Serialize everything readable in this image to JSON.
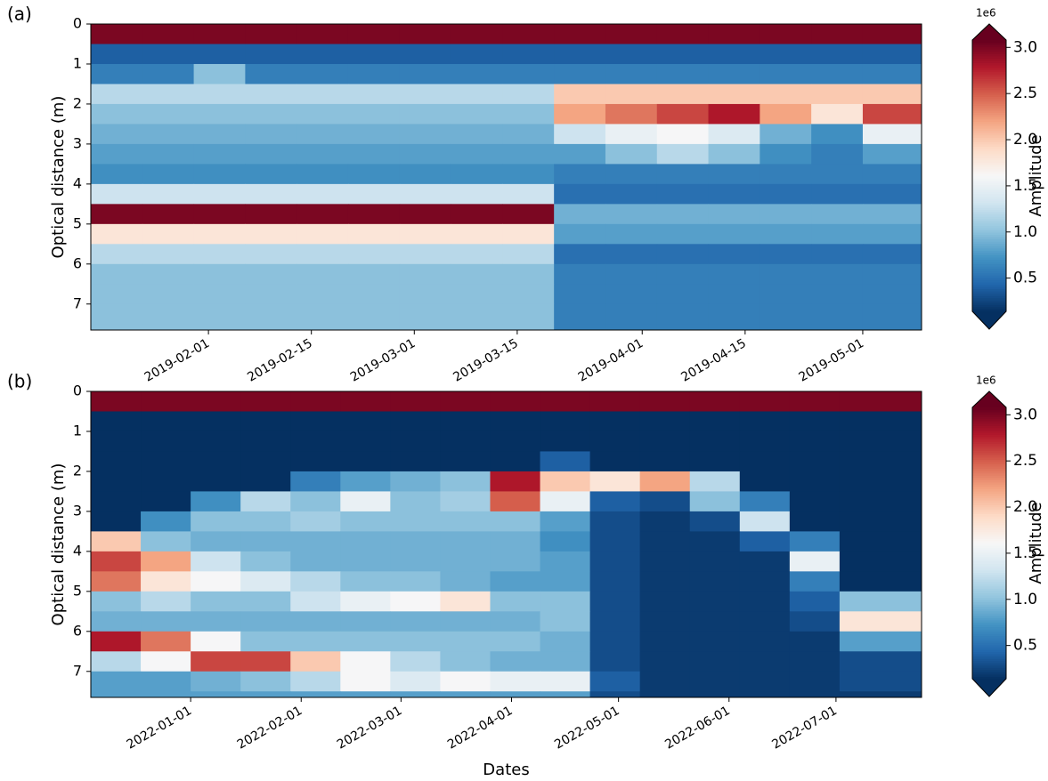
{
  "chart_data": [
    {
      "type": "heatmap",
      "panel_label": "(a)",
      "ylabel": "Optical distance  (m)",
      "colorbar_label": "Amplitude",
      "colorbar_offset": "1e6",
      "colormap": "RdBu_r",
      "xlim": [
        "2019-01-16",
        "2019-05-09"
      ],
      "xticks": [
        "2019-02-01",
        "2019-02-15",
        "2019-03-01",
        "2019-03-15",
        "2019-04-01",
        "2019-04-15",
        "2019-05-01"
      ],
      "ylim": [
        7.65,
        0
      ],
      "yticks": [
        0,
        1,
        2,
        3,
        4,
        5,
        6,
        7
      ],
      "clim": [
        0.14,
        3.08
      ],
      "cticks": [
        0.5,
        {
          "value": 1,
          "label": "1.0"
        },
        1.5,
        {
          "value": 2,
          "label": "2.0"
        },
        2.5,
        {
          "value": 3,
          "label": "3.0"
        }
      ],
      "x": [
        "2019-01-16",
        "2019-01-23",
        "2019-01-30",
        "2019-02-06",
        "2019-02-13",
        "2019-02-20",
        "2019-02-27",
        "2019-03-06",
        "2019-03-13",
        "2019-03-20",
        "2019-03-27",
        "2019-04-03",
        "2019-04-10",
        "2019-04-17",
        "2019-04-24",
        "2019-05-01"
      ],
      "y": [
        0,
        0.5,
        1,
        1.5,
        2,
        2.5,
        3,
        3.5,
        4,
        4.5,
        5,
        5.5,
        6,
        6.5,
        7,
        7.5
      ],
      "z": [
        [
          3.0,
          3.0,
          3.0,
          3.0,
          3.0,
          3.0,
          3.0,
          3.0,
          3.0,
          3.0,
          3.0,
          3.0,
          3.0,
          3.0,
          3.0,
          3.0
        ],
        [
          0.4,
          0.4,
          0.4,
          0.4,
          0.4,
          0.4,
          0.4,
          0.4,
          0.4,
          0.4,
          0.4,
          0.4,
          0.4,
          0.4,
          0.4,
          0.4
        ],
        [
          0.6,
          0.6,
          1.0,
          0.6,
          0.6,
          0.6,
          0.6,
          0.6,
          0.6,
          0.6,
          0.6,
          0.6,
          0.6,
          0.6,
          0.6,
          0.6
        ],
        [
          1.2,
          1.2,
          1.2,
          1.2,
          1.2,
          1.2,
          1.2,
          1.2,
          1.2,
          2.0,
          2.0,
          2.0,
          2.0,
          2.0,
          2.0,
          2.0
        ],
        [
          1.0,
          1.0,
          1.0,
          1.0,
          1.0,
          1.0,
          1.0,
          1.0,
          1.0,
          2.2,
          2.4,
          2.6,
          2.8,
          2.2,
          1.8,
          2.6
        ],
        [
          0.9,
          0.9,
          0.9,
          0.9,
          0.9,
          0.9,
          0.9,
          0.9,
          0.9,
          1.3,
          1.5,
          1.6,
          1.4,
          0.9,
          0.7,
          1.5
        ],
        [
          0.8,
          0.8,
          0.8,
          0.8,
          0.8,
          0.8,
          0.8,
          0.8,
          0.8,
          0.8,
          1.0,
          1.2,
          1.0,
          0.7,
          0.6,
          0.8
        ],
        [
          0.7,
          0.7,
          0.7,
          0.7,
          0.7,
          0.7,
          0.7,
          0.7,
          0.7,
          0.6,
          0.6,
          0.6,
          0.6,
          0.6,
          0.6,
          0.6
        ],
        [
          1.3,
          1.3,
          1.3,
          1.3,
          1.3,
          1.3,
          1.3,
          1.3,
          1.3,
          0.5,
          0.5,
          0.5,
          0.5,
          0.5,
          0.5,
          0.5
        ],
        [
          3.0,
          3.0,
          3.0,
          3.0,
          3.0,
          3.0,
          3.0,
          3.0,
          3.0,
          0.9,
          0.9,
          0.9,
          0.9,
          0.9,
          0.9,
          0.9
        ],
        [
          1.8,
          1.8,
          1.8,
          1.8,
          1.8,
          1.8,
          1.8,
          1.8,
          1.8,
          0.8,
          0.8,
          0.8,
          0.8,
          0.8,
          0.8,
          0.8
        ],
        [
          1.2,
          1.2,
          1.2,
          1.2,
          1.2,
          1.2,
          1.2,
          1.2,
          1.2,
          0.5,
          0.5,
          0.5,
          0.5,
          0.5,
          0.5,
          0.5
        ],
        [
          1.0,
          1.0,
          1.0,
          1.0,
          1.0,
          1.0,
          1.0,
          1.0,
          1.0,
          0.6,
          0.6,
          0.6,
          0.6,
          0.6,
          0.6,
          0.6
        ],
        [
          1.0,
          1.0,
          1.0,
          1.0,
          1.0,
          1.0,
          1.0,
          1.0,
          1.0,
          0.6,
          0.6,
          0.6,
          0.6,
          0.6,
          0.6,
          0.6
        ],
        [
          1.0,
          1.0,
          1.0,
          1.0,
          1.0,
          1.0,
          1.0,
          1.0,
          1.0,
          0.6,
          0.6,
          0.6,
          0.6,
          0.6,
          0.6,
          0.6
        ],
        [
          1.0,
          1.0,
          1.0,
          1.0,
          1.0,
          1.0,
          1.0,
          1.0,
          1.0,
          0.6,
          0.6,
          0.6,
          0.6,
          0.6,
          0.6,
          0.6
        ]
      ]
    },
    {
      "type": "heatmap",
      "panel_label": "(b)",
      "ylabel": "Optical distance  (m)",
      "xlabel": "Dates",
      "colorbar_label": "Amplitude",
      "colorbar_offset": "1e6",
      "colormap": "RdBu_r",
      "xlim": [
        "2021-12-04",
        "2022-07-25"
      ],
      "xticks": [
        "2022-01-01",
        "2022-02-01",
        "2022-03-01",
        "2022-04-01",
        "2022-05-01",
        "2022-06-01",
        "2022-07-01"
      ],
      "ylim": [
        7.65,
        0
      ],
      "yticks": [
        0,
        1,
        2,
        3,
        4,
        5,
        6,
        7
      ],
      "clim": [
        0.14,
        3.08
      ],
      "cticks": [
        0.5,
        {
          "value": 1,
          "label": "1.0"
        },
        1.5,
        {
          "value": 2,
          "label": "2.0"
        },
        2.5,
        {
          "value": 3,
          "label": "3.0"
        }
      ],
      "x": [
        "2021-12-04",
        "2021-12-18",
        "2022-01-01",
        "2022-01-15",
        "2022-01-29",
        "2022-02-12",
        "2022-02-26",
        "2022-03-12",
        "2022-03-26",
        "2022-04-09",
        "2022-04-23",
        "2022-05-07",
        "2022-05-21",
        "2022-06-04",
        "2022-06-18",
        "2022-07-02"
      ],
      "y": [
        0,
        0.5,
        1,
        1.5,
        2,
        2.5,
        3,
        3.5,
        4,
        4.5,
        5,
        5.5,
        6,
        6.5,
        7,
        7.5
      ],
      "z": [
        [
          3.0,
          3.0,
          3.0,
          3.0,
          3.0,
          3.0,
          3.0,
          3.0,
          3.0,
          3.0,
          3.0,
          3.0,
          3.0,
          3.0,
          3.0,
          3.0
        ],
        [
          0.05,
          0.05,
          0.05,
          0.05,
          0.05,
          0.05,
          0.05,
          0.05,
          0.05,
          0.05,
          0.05,
          0.05,
          0.05,
          0.05,
          0.05,
          0.05
        ],
        [
          0.05,
          0.05,
          0.05,
          0.05,
          0.05,
          0.05,
          0.05,
          0.05,
          0.05,
          0.05,
          0.05,
          0.05,
          0.05,
          0.05,
          0.05,
          0.05
        ],
        [
          0.05,
          0.05,
          0.05,
          0.05,
          0.05,
          0.05,
          0.05,
          0.05,
          0.05,
          0.4,
          0.05,
          0.05,
          0.05,
          0.05,
          0.05,
          0.05
        ],
        [
          0.05,
          0.05,
          0.05,
          0.05,
          0.6,
          0.8,
          0.9,
          1.0,
          2.8,
          2.0,
          1.8,
          2.2,
          1.2,
          0.05,
          0.05,
          0.05
        ],
        [
          0.05,
          0.05,
          0.7,
          1.2,
          1.0,
          1.5,
          1.0,
          1.1,
          2.5,
          1.5,
          0.4,
          0.3,
          1.0,
          0.6,
          0.05,
          0.05
        ],
        [
          0.05,
          0.7,
          1.0,
          1.0,
          1.1,
          1.0,
          1.0,
          1.0,
          1.0,
          0.8,
          0.3,
          0.2,
          0.3,
          1.3,
          0.05,
          0.05
        ],
        [
          2.0,
          1.0,
          0.9,
          0.9,
          0.9,
          0.9,
          0.9,
          0.9,
          0.9,
          0.7,
          0.3,
          0.2,
          0.2,
          0.4,
          0.6,
          0.05
        ],
        [
          2.6,
          2.2,
          1.3,
          1.0,
          0.9,
          0.9,
          0.9,
          0.9,
          0.9,
          0.8,
          0.3,
          0.2,
          0.2,
          0.2,
          1.5,
          0.05
        ],
        [
          2.4,
          1.8,
          1.6,
          1.4,
          1.2,
          1.0,
          1.0,
          0.9,
          0.8,
          0.8,
          0.3,
          0.2,
          0.2,
          0.2,
          0.6,
          0.05
        ],
        [
          1.0,
          1.2,
          1.0,
          1.0,
          1.3,
          1.5,
          1.6,
          1.8,
          1.0,
          1.0,
          0.3,
          0.2,
          0.2,
          0.2,
          0.4,
          1.0
        ],
        [
          0.9,
          0.9,
          0.9,
          0.9,
          0.9,
          0.9,
          0.9,
          0.9,
          0.9,
          1.0,
          0.3,
          0.2,
          0.2,
          0.2,
          0.3,
          1.8
        ],
        [
          2.8,
          2.4,
          1.6,
          1.0,
          1.0,
          1.0,
          1.0,
          1.0,
          1.0,
          0.9,
          0.3,
          0.2,
          0.2,
          0.2,
          0.2,
          0.8
        ],
        [
          1.2,
          1.6,
          2.6,
          2.6,
          2.0,
          1.6,
          1.2,
          1.0,
          0.9,
          0.9,
          0.3,
          0.2,
          0.2,
          0.2,
          0.2,
          0.3
        ],
        [
          0.8,
          0.8,
          0.9,
          1.0,
          1.2,
          1.6,
          1.4,
          1.6,
          1.5,
          1.5,
          0.4,
          0.2,
          0.2,
          0.2,
          0.2,
          0.3
        ],
        [
          0.8,
          0.8,
          0.8,
          0.8,
          0.8,
          0.8,
          0.8,
          0.8,
          0.8,
          0.8,
          0.3,
          0.2,
          0.2,
          0.2,
          0.2,
          0.2
        ]
      ]
    }
  ]
}
